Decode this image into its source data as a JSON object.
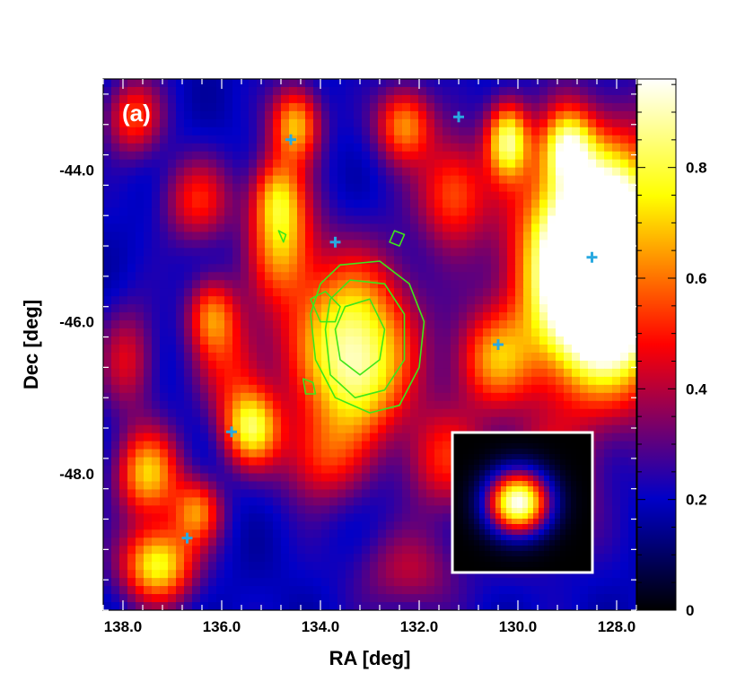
{
  "chart_data": {
    "type": "heatmap",
    "panel_label": "(a)",
    "xlabel": "RA [deg]",
    "ylabel": "Dec [deg]",
    "xlim": [
      138.4,
      127.6
    ],
    "ylim": [
      -49.8,
      -42.8
    ],
    "x_ticks": [
      138.0,
      136.0,
      134.0,
      132.0,
      130.0,
      128.0
    ],
    "x_tick_labels": [
      "138.0",
      "136.0",
      "134.0",
      "132.0",
      "130.0",
      "128.0"
    ],
    "y_ticks": [
      -44.0,
      -46.0,
      -48.0
    ],
    "y_tick_labels": [
      "-44.0",
      "-46.0",
      "-48.0"
    ],
    "colorbar": {
      "range": [
        0,
        0.96
      ],
      "ticks": [
        0,
        0.2,
        0.4,
        0.6,
        0.8
      ],
      "tick_labels": [
        "0",
        "0.2",
        "0.4",
        "0.6",
        "0.8"
      ],
      "colormap": [
        "#000000",
        "#0000c8",
        "#ff0000",
        "#ffff00",
        "#ffffff"
      ]
    },
    "blobs": [
      {
        "ra": 133.4,
        "dec": -46.2,
        "sigma_ra": 0.9,
        "sigma_dec": 0.75,
        "amp": 0.62
      },
      {
        "ra": 133.2,
        "dec": -46.9,
        "sigma_ra": 0.6,
        "sigma_dec": 0.5,
        "amp": 0.25
      },
      {
        "ra": 134.8,
        "dec": -44.9,
        "sigma_ra": 0.45,
        "sigma_dec": 0.55,
        "amp": 0.45
      },
      {
        "ra": 134.9,
        "dec": -44.3,
        "sigma_ra": 0.35,
        "sigma_dec": 0.35,
        "amp": 0.3
      },
      {
        "ra": 128.3,
        "dec": -45.3,
        "sigma_ra": 1.0,
        "sigma_dec": 1.0,
        "amp": 1.6
      },
      {
        "ra": 130.2,
        "dec": -43.6,
        "sigma_ra": 0.3,
        "sigma_dec": 0.35,
        "amp": 0.62
      },
      {
        "ra": 129.0,
        "dec": -43.7,
        "sigma_ra": 0.35,
        "sigma_dec": 0.35,
        "amp": 0.5
      },
      {
        "ra": 132.3,
        "dec": -43.4,
        "sigma_ra": 0.4,
        "sigma_dec": 0.35,
        "amp": 0.45
      },
      {
        "ra": 134.5,
        "dec": -43.4,
        "sigma_ra": 0.35,
        "sigma_dec": 0.35,
        "amp": 0.5
      },
      {
        "ra": 131.3,
        "dec": -44.3,
        "sigma_ra": 0.5,
        "sigma_dec": 0.5,
        "amp": 0.38
      },
      {
        "ra": 130.5,
        "dec": -46.5,
        "sigma_ra": 0.55,
        "sigma_dec": 0.45,
        "amp": 0.4
      },
      {
        "ra": 135.4,
        "dec": -47.4,
        "sigma_ra": 0.4,
        "sigma_dec": 0.35,
        "amp": 0.55
      },
      {
        "ra": 137.5,
        "dec": -48.0,
        "sigma_ra": 0.45,
        "sigma_dec": 0.4,
        "amp": 0.5
      },
      {
        "ra": 137.3,
        "dec": -49.2,
        "sigma_ra": 0.5,
        "sigma_dec": 0.35,
        "amp": 0.6
      },
      {
        "ra": 136.5,
        "dec": -48.5,
        "sigma_ra": 0.35,
        "sigma_dec": 0.3,
        "amp": 0.4
      },
      {
        "ra": 136.2,
        "dec": -45.9,
        "sigma_ra": 0.35,
        "sigma_dec": 0.35,
        "amp": 0.38
      },
      {
        "ra": 136.5,
        "dec": -44.4,
        "sigma_ra": 0.5,
        "sigma_dec": 0.4,
        "amp": 0.3
      },
      {
        "ra": 137.8,
        "dec": -43.3,
        "sigma_ra": 0.4,
        "sigma_dec": 0.35,
        "amp": 0.35
      },
      {
        "ra": 129.5,
        "dec": -48.2,
        "sigma_ra": 0.7,
        "sigma_dec": 0.6,
        "amp": 0.3
      },
      {
        "ra": 131.5,
        "dec": -47.8,
        "sigma_ra": 0.6,
        "sigma_dec": 0.5,
        "amp": 0.3
      },
      {
        "ra": 134.0,
        "dec": -47.8,
        "sigma_ra": 0.6,
        "sigma_dec": 0.45,
        "amp": 0.3
      },
      {
        "ra": 135.8,
        "dec": -46.6,
        "sigma_ra": 0.5,
        "sigma_dec": 0.5,
        "amp": 0.25
      },
      {
        "ra": 137.9,
        "dec": -46.5,
        "sigma_ra": 0.4,
        "sigma_dec": 0.5,
        "amp": 0.25
      },
      {
        "ra": 132.2,
        "dec": -49.3,
        "sigma_ra": 0.8,
        "sigma_dec": 0.4,
        "amp": 0.2
      }
    ],
    "background_level": 0.22,
    "markers": [
      {
        "ra": 131.2,
        "dec": -43.3
      },
      {
        "ra": 134.6,
        "dec": -43.6
      },
      {
        "ra": 133.7,
        "dec": -44.95
      },
      {
        "ra": 128.5,
        "dec": -45.15
      },
      {
        "ra": 130.4,
        "dec": -46.3
      },
      {
        "ra": 135.8,
        "dec": -47.45
      },
      {
        "ra": 136.7,
        "dec": -48.85
      }
    ],
    "contours": [
      [
        [
          133.6,
          -45.25
        ],
        [
          132.8,
          -45.2
        ],
        [
          132.2,
          -45.5
        ],
        [
          131.9,
          -46.0
        ],
        [
          132.0,
          -46.6
        ],
        [
          132.4,
          -47.1
        ],
        [
          133.0,
          -47.2
        ],
        [
          133.7,
          -47.0
        ],
        [
          134.1,
          -46.5
        ],
        [
          134.2,
          -45.9
        ],
        [
          134.0,
          -45.5
        ]
      ],
      [
        [
          133.4,
          -45.45
        ],
        [
          132.7,
          -45.5
        ],
        [
          132.3,
          -45.9
        ],
        [
          132.3,
          -46.5
        ],
        [
          132.7,
          -46.9
        ],
        [
          133.3,
          -47.0
        ],
        [
          133.8,
          -46.7
        ],
        [
          133.9,
          -46.1
        ],
        [
          133.8,
          -45.7
        ]
      ],
      [
        [
          133.5,
          -45.8
        ],
        [
          133.0,
          -45.7
        ],
        [
          132.7,
          -46.1
        ],
        [
          132.8,
          -46.5
        ],
        [
          133.2,
          -46.7
        ],
        [
          133.6,
          -46.5
        ],
        [
          133.7,
          -46.1
        ]
      ],
      [
        [
          134.2,
          -45.7
        ],
        [
          133.9,
          -45.6
        ],
        [
          133.6,
          -45.8
        ],
        [
          133.7,
          -46.0
        ],
        [
          134.0,
          -46.0
        ]
      ],
      [
        [
          134.15,
          -46.8
        ],
        [
          134.35,
          -46.75
        ],
        [
          134.3,
          -46.95
        ],
        [
          134.1,
          -46.95
        ]
      ],
      [
        [
          132.5,
          -44.8
        ],
        [
          132.3,
          -44.85
        ],
        [
          132.4,
          -45.0
        ],
        [
          132.6,
          -44.95
        ]
      ],
      [
        [
          134.85,
          -44.8
        ],
        [
          134.7,
          -44.85
        ],
        [
          134.75,
          -44.95
        ]
      ]
    ],
    "colors": {
      "marker": "#29a9e0",
      "contour": "#3ee61a",
      "inset_border": "#ffffff",
      "frame": "#000000"
    },
    "inset": {
      "description_text": "",
      "psf_amp": 1.0,
      "psf_sigma_fraction": 0.15
    }
  }
}
